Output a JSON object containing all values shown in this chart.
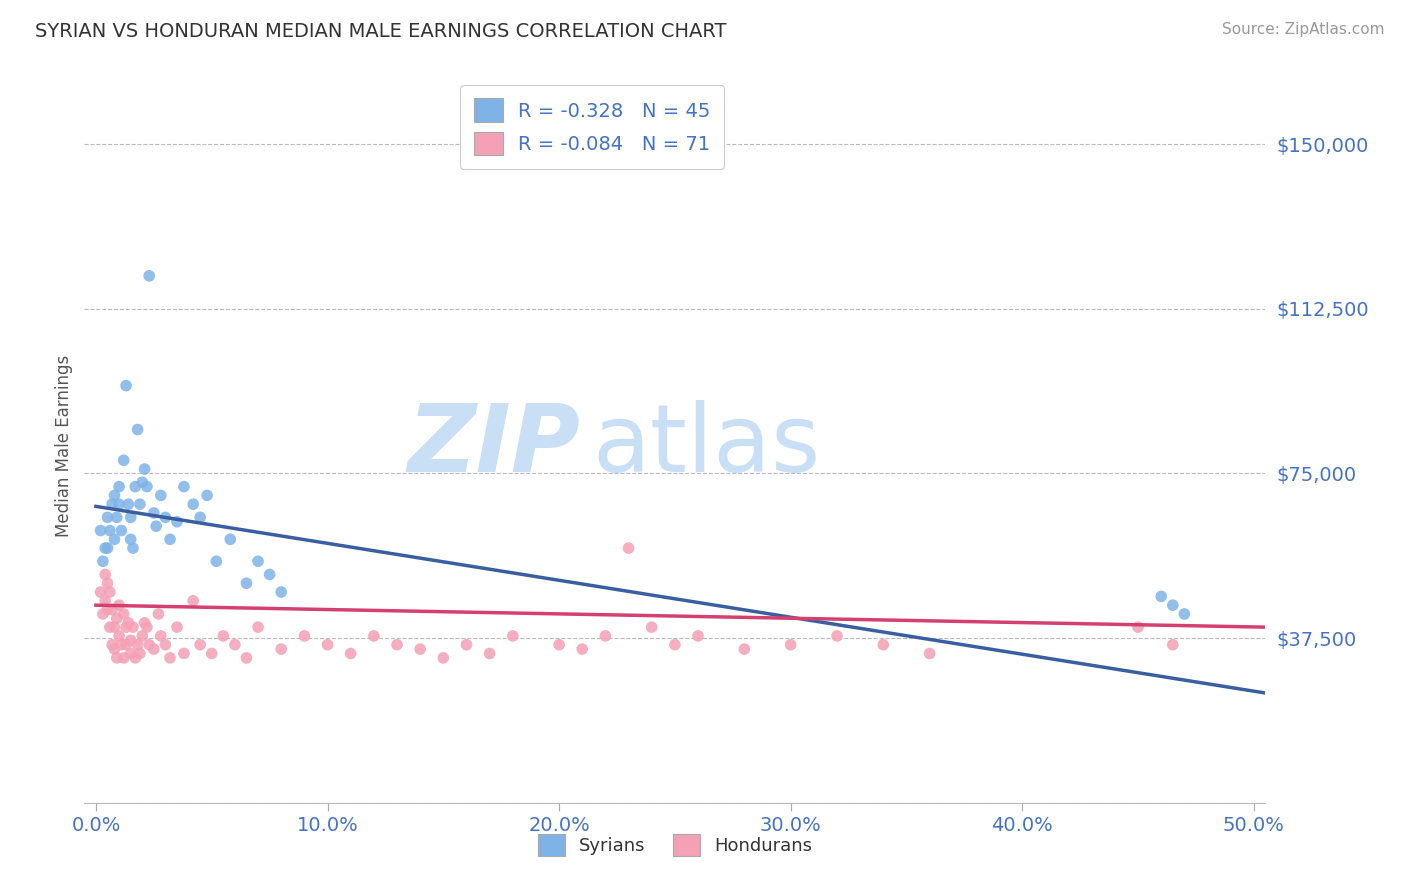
{
  "title": "SYRIAN VS HONDURAN MEDIAN MALE EARNINGS CORRELATION CHART",
  "source": "Source: ZipAtlas.com",
  "ylabel": "Median Male Earnings",
  "xlim": [
    -0.005,
    0.505
  ],
  "ylim": [
    0,
    162500
  ],
  "yticks": [
    0,
    37500,
    75000,
    112500,
    150000
  ],
  "ytick_labels": [
    "",
    "$37,500",
    "$75,000",
    "$112,500",
    "$150,000"
  ],
  "xticks": [
    0.0,
    0.1,
    0.2,
    0.3,
    0.4,
    0.5
  ],
  "xtick_labels": [
    "0.0%",
    "10.0%",
    "20.0%",
    "30.0%",
    "40.0%",
    "50.0%"
  ],
  "title_color": "#333333",
  "axis_tick_color": "#4472c4",
  "source_color": "#999999",
  "legend_text_color": "#4472c4",
  "syrian_color": "#7eb3e8",
  "honduran_color": "#f4a0b5",
  "syrian_line_color": "#3a5fa0",
  "honduran_line_color": "#d44070",
  "syrian_R": "-0.328",
  "syrian_N": "45",
  "honduran_R": "-0.084",
  "honduran_N": "71",
  "watermark_zip": "ZIP",
  "watermark_atlas": "atlas",
  "watermark_color": "#c8dff5",
  "syrian_line_x0": 0.0,
  "syrian_line_y0": 67500,
  "syrian_line_x1": 0.505,
  "syrian_line_y1": 25000,
  "honduran_line_x0": 0.0,
  "honduran_line_y0": 45000,
  "honduran_line_x1": 0.505,
  "honduran_line_y1": 40000,
  "syrians_x": [
    0.002,
    0.003,
    0.004,
    0.005,
    0.005,
    0.006,
    0.007,
    0.008,
    0.008,
    0.009,
    0.01,
    0.01,
    0.011,
    0.012,
    0.013,
    0.014,
    0.015,
    0.015,
    0.016,
    0.017,
    0.018,
    0.019,
    0.02,
    0.021,
    0.022,
    0.023,
    0.025,
    0.026,
    0.028,
    0.03,
    0.032,
    0.035,
    0.038,
    0.042,
    0.045,
    0.048,
    0.052,
    0.058,
    0.065,
    0.07,
    0.075,
    0.08,
    0.46,
    0.465,
    0.47
  ],
  "syrians_y": [
    62000,
    55000,
    58000,
    65000,
    58000,
    62000,
    68000,
    70000,
    60000,
    65000,
    68000,
    72000,
    62000,
    78000,
    95000,
    68000,
    65000,
    60000,
    58000,
    72000,
    85000,
    68000,
    73000,
    76000,
    72000,
    120000,
    66000,
    63000,
    70000,
    65000,
    60000,
    64000,
    72000,
    68000,
    65000,
    70000,
    55000,
    60000,
    50000,
    55000,
    52000,
    48000,
    47000,
    45000,
    43000
  ],
  "hondurans_x": [
    0.002,
    0.003,
    0.004,
    0.004,
    0.005,
    0.005,
    0.006,
    0.006,
    0.007,
    0.007,
    0.008,
    0.008,
    0.009,
    0.009,
    0.01,
    0.01,
    0.011,
    0.012,
    0.012,
    0.013,
    0.013,
    0.014,
    0.015,
    0.015,
    0.016,
    0.017,
    0.018,
    0.019,
    0.02,
    0.021,
    0.022,
    0.023,
    0.025,
    0.027,
    0.028,
    0.03,
    0.032,
    0.035,
    0.038,
    0.042,
    0.045,
    0.05,
    0.055,
    0.06,
    0.065,
    0.07,
    0.08,
    0.09,
    0.1,
    0.11,
    0.12,
    0.13,
    0.14,
    0.15,
    0.16,
    0.17,
    0.18,
    0.2,
    0.21,
    0.22,
    0.23,
    0.24,
    0.25,
    0.26,
    0.28,
    0.3,
    0.32,
    0.34,
    0.36,
    0.45,
    0.465
  ],
  "hondurans_y": [
    48000,
    43000,
    52000,
    46000,
    50000,
    44000,
    40000,
    48000,
    36000,
    44000,
    40000,
    35000,
    42000,
    33000,
    45000,
    38000,
    36000,
    43000,
    33000,
    40000,
    36000,
    41000,
    34000,
    37000,
    40000,
    33000,
    36000,
    34000,
    38000,
    41000,
    40000,
    36000,
    35000,
    43000,
    38000,
    36000,
    33000,
    40000,
    34000,
    46000,
    36000,
    34000,
    38000,
    36000,
    33000,
    40000,
    35000,
    38000,
    36000,
    34000,
    38000,
    36000,
    35000,
    33000,
    36000,
    34000,
    38000,
    36000,
    35000,
    38000,
    58000,
    40000,
    36000,
    38000,
    35000,
    36000,
    38000,
    36000,
    34000,
    40000,
    36000
  ]
}
